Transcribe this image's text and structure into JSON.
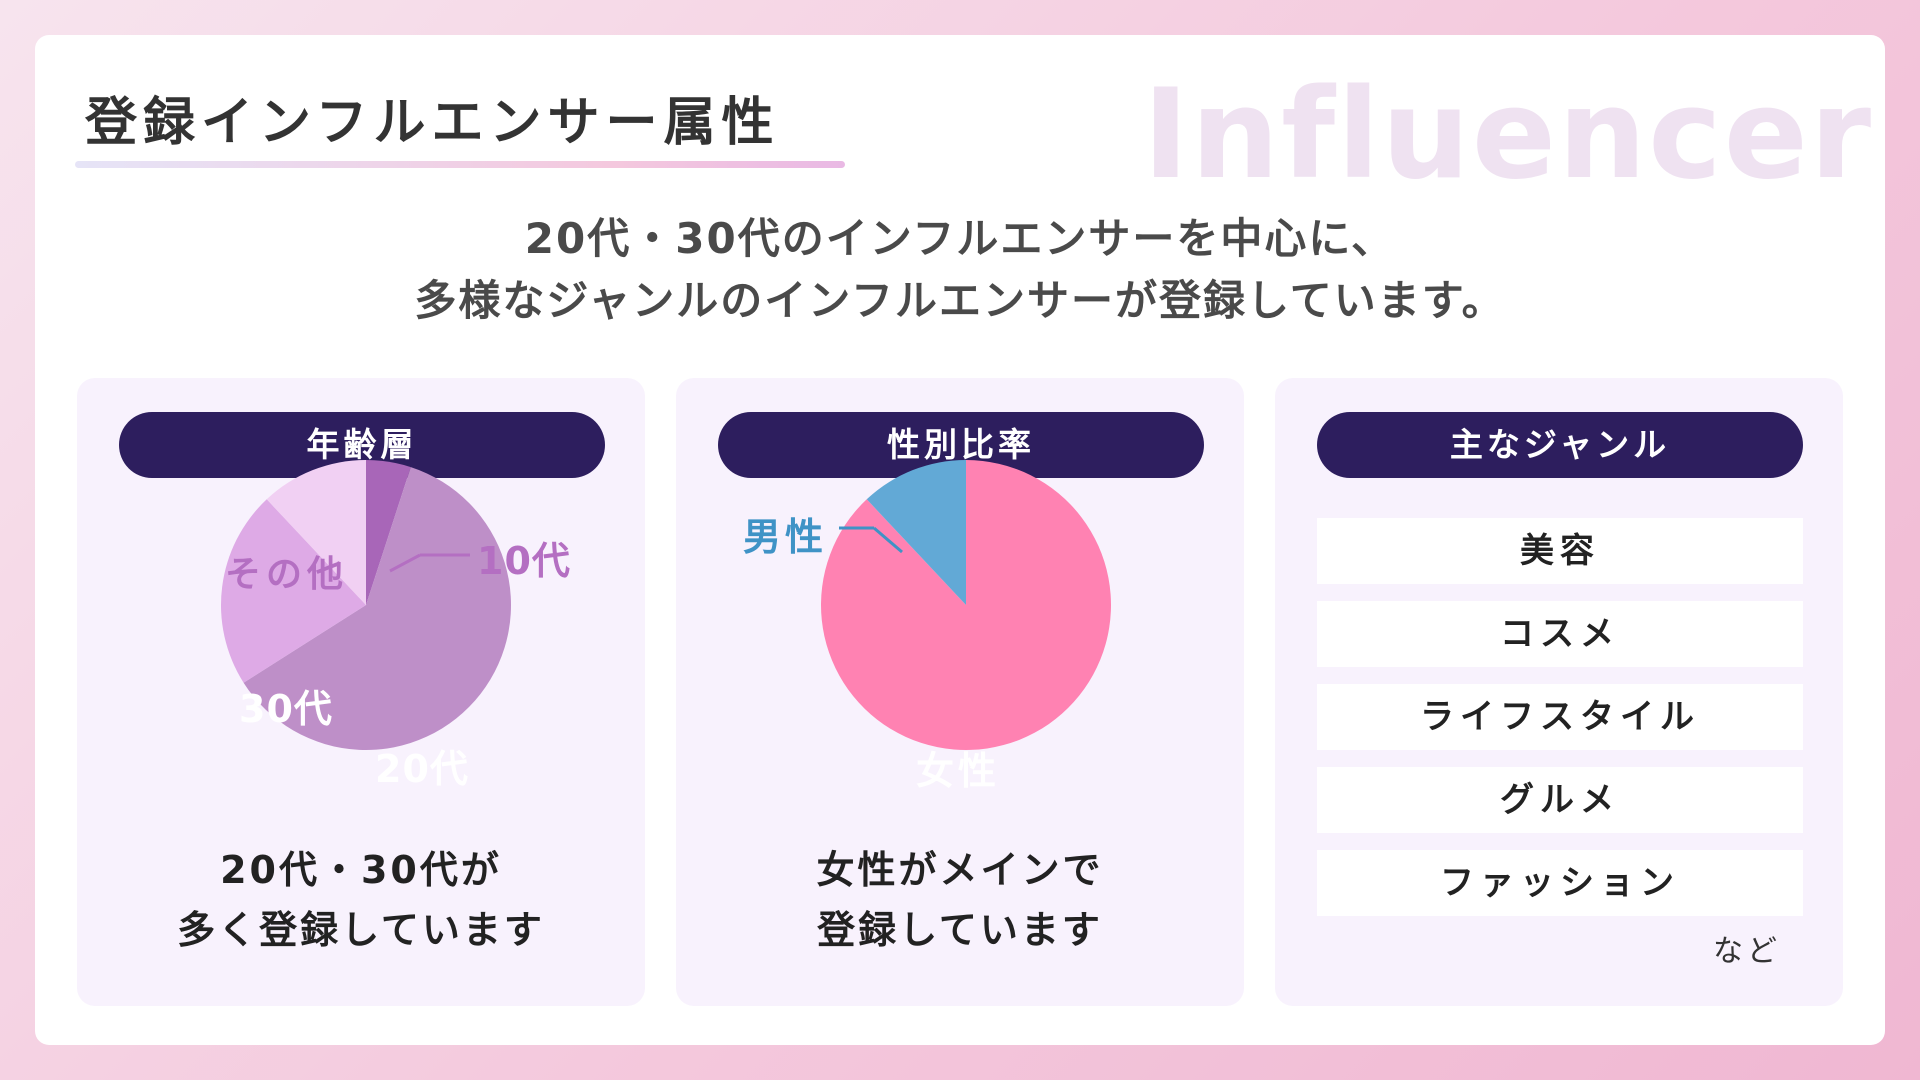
{
  "page": {
    "title": "登録インフルエンサー属性",
    "watermark": "Influencer",
    "lead_line1": "20代・30代のインフルエンサーを中心に、",
    "lead_line2": "多様なジャンルのインフルエンサーが登録しています。"
  },
  "age_panel": {
    "header": "年齢層",
    "note_line1": "20代・30代が",
    "note_line2": "多く登録しています",
    "labels": {
      "teens_10": "10代",
      "twenties": "20代",
      "thirties": "30代",
      "other": "その他"
    }
  },
  "gender_panel": {
    "header": "性別比率",
    "note_line1": "女性がメインで",
    "note_line2": "登録しています",
    "labels": {
      "male": "男性",
      "female": "女性"
    }
  },
  "genre_panel": {
    "header": "主なジャンル",
    "items": [
      "美容",
      "コスメ",
      "ライフスタイル",
      "グルメ",
      "ファッション"
    ],
    "etc": "など"
  },
  "chart_data": [
    {
      "type": "pie",
      "categories": [
        "10代",
        "20代",
        "30代",
        "その他"
      ],
      "values": [
        5,
        61,
        22,
        12
      ],
      "colors": [
        "#a866b8",
        "#be8fc8",
        "#deaae6",
        "#f1d0f3"
      ],
      "start_angle_deg": 0,
      "direction": "clockwise"
    },
    {
      "type": "pie",
      "categories": [
        "女性",
        "男性"
      ],
      "values": [
        88,
        12
      ],
      "colors": [
        "#ff82b2",
        "#62a9d6"
      ],
      "start_angle_deg": 0,
      "direction": "clockwise"
    }
  ],
  "colors": {
    "header_bg": "#2d1e5e",
    "panel_bg": "#f8f2fd",
    "age_label": "#b46fc2",
    "male_label": "#3f93c6",
    "watermark": "#efe2f1"
  }
}
